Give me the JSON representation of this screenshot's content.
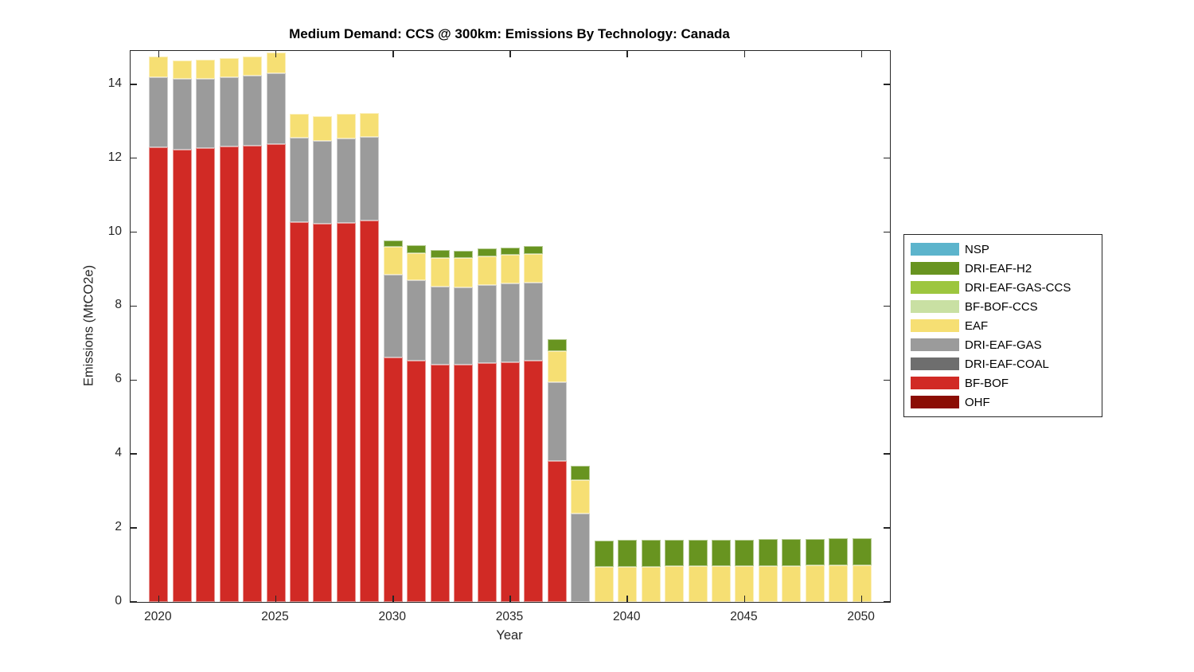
{
  "chart_data": {
    "type": "bar",
    "stacked": true,
    "title": "Medium Demand: CCS @ 300km: Emissions By Technology: Canada",
    "xlabel": "Year",
    "ylabel": "Emissions (MtCO2e)",
    "xlim": [
      2018.8,
      2051.2
    ],
    "ylim": [
      0,
      14.9
    ],
    "x_ticks": [
      2020,
      2025,
      2030,
      2035,
      2040,
      2045,
      2050
    ],
    "y_ticks": [
      0,
      2,
      4,
      6,
      8,
      10,
      12,
      14
    ],
    "grid": false,
    "legend_position": "right-outside",
    "legend_order_top_to_bottom": [
      "NSP",
      "DRI-EAF-H2",
      "DRI-EAF-GAS-CCS",
      "BF-BOF-CCS",
      "EAF",
      "DRI-EAF-GAS",
      "DRI-EAF-COAL",
      "BF-BOF",
      "OHF"
    ],
    "categories": [
      2020,
      2021,
      2022,
      2023,
      2024,
      2025,
      2026,
      2027,
      2028,
      2029,
      2030,
      2031,
      2032,
      2033,
      2034,
      2035,
      2036,
      2037,
      2038,
      2039,
      2040,
      2041,
      2042,
      2043,
      2044,
      2045,
      2046,
      2047,
      2048,
      2049,
      2050
    ],
    "series": [
      {
        "name": "OHF",
        "color": "#8B0D04",
        "values": [
          0,
          0,
          0,
          0,
          0,
          0,
          0,
          0,
          0,
          0,
          0,
          0,
          0,
          0,
          0,
          0,
          0,
          0,
          0,
          0,
          0,
          0,
          0,
          0,
          0,
          0,
          0,
          0,
          0,
          0,
          0
        ]
      },
      {
        "name": "BF-BOF",
        "color": "#D12A25",
        "values": [
          12.3,
          12.24,
          12.27,
          12.31,
          12.34,
          12.38,
          10.28,
          10.22,
          10.26,
          10.31,
          6.62,
          6.52,
          6.42,
          6.41,
          6.45,
          6.49,
          6.52,
          3.82,
          0,
          0,
          0,
          0,
          0,
          0,
          0,
          0,
          0,
          0,
          0,
          0,
          0
        ]
      },
      {
        "name": "DRI-EAF-COAL",
        "color": "#6E6E6E",
        "values": [
          0,
          0,
          0,
          0,
          0,
          0,
          0,
          0,
          0,
          0,
          0,
          0,
          0,
          0,
          0,
          0,
          0,
          0,
          0,
          0,
          0,
          0,
          0,
          0,
          0,
          0,
          0,
          0,
          0,
          0,
          0
        ]
      },
      {
        "name": "DRI-EAF-GAS",
        "color": "#9B9B9B",
        "values": [
          1.9,
          1.9,
          1.88,
          1.88,
          1.9,
          1.92,
          2.28,
          2.24,
          2.27,
          2.27,
          2.23,
          2.17,
          2.1,
          2.1,
          2.13,
          2.13,
          2.11,
          2.13,
          2.4,
          0,
          0,
          0,
          0,
          0,
          0,
          0,
          0,
          0,
          0,
          0,
          0
        ]
      },
      {
        "name": "EAF",
        "color": "#F6DF73",
        "values": [
          0.55,
          0.5,
          0.52,
          0.52,
          0.52,
          0.55,
          0.65,
          0.67,
          0.66,
          0.64,
          0.75,
          0.75,
          0.79,
          0.79,
          0.77,
          0.76,
          0.78,
          0.84,
          0.9,
          0.94,
          0.95,
          0.95,
          0.96,
          0.96,
          0.97,
          0.97,
          0.98,
          0.98,
          0.99,
          0.99,
          1.0
        ]
      },
      {
        "name": "BF-BOF-CCS",
        "color": "#C9E0A3",
        "values": [
          0,
          0,
          0,
          0,
          0,
          0,
          0,
          0,
          0,
          0,
          0,
          0,
          0,
          0,
          0,
          0,
          0,
          0,
          0,
          0,
          0,
          0,
          0,
          0,
          0,
          0,
          0,
          0,
          0,
          0,
          0
        ]
      },
      {
        "name": "DRI-EAF-GAS-CCS",
        "color": "#9DC63F",
        "values": [
          0,
          0,
          0,
          0,
          0,
          0,
          0,
          0,
          0,
          0,
          0,
          0,
          0,
          0,
          0,
          0,
          0,
          0,
          0,
          0,
          0,
          0,
          0,
          0,
          0,
          0,
          0,
          0,
          0,
          0,
          0
        ]
      },
      {
        "name": "DRI-EAF-H2",
        "color": "#689420",
        "values": [
          0,
          0,
          0,
          0,
          0,
          0,
          0,
          0,
          0,
          0,
          0.18,
          0.21,
          0.2,
          0.2,
          0.2,
          0.2,
          0.21,
          0.32,
          0.39,
          0.72,
          0.72,
          0.72,
          0.71,
          0.72,
          0.71,
          0.72,
          0.72,
          0.72,
          0.72,
          0.73,
          0.73
        ]
      },
      {
        "name": "NSP",
        "color": "#5CB4CC",
        "values": [
          0,
          0,
          0,
          0,
          0,
          0,
          0,
          0,
          0,
          0,
          0,
          0,
          0,
          0,
          0,
          0,
          0,
          0,
          0,
          0,
          0,
          0,
          0,
          0,
          0,
          0,
          0,
          0,
          0,
          0,
          0
        ]
      }
    ]
  }
}
